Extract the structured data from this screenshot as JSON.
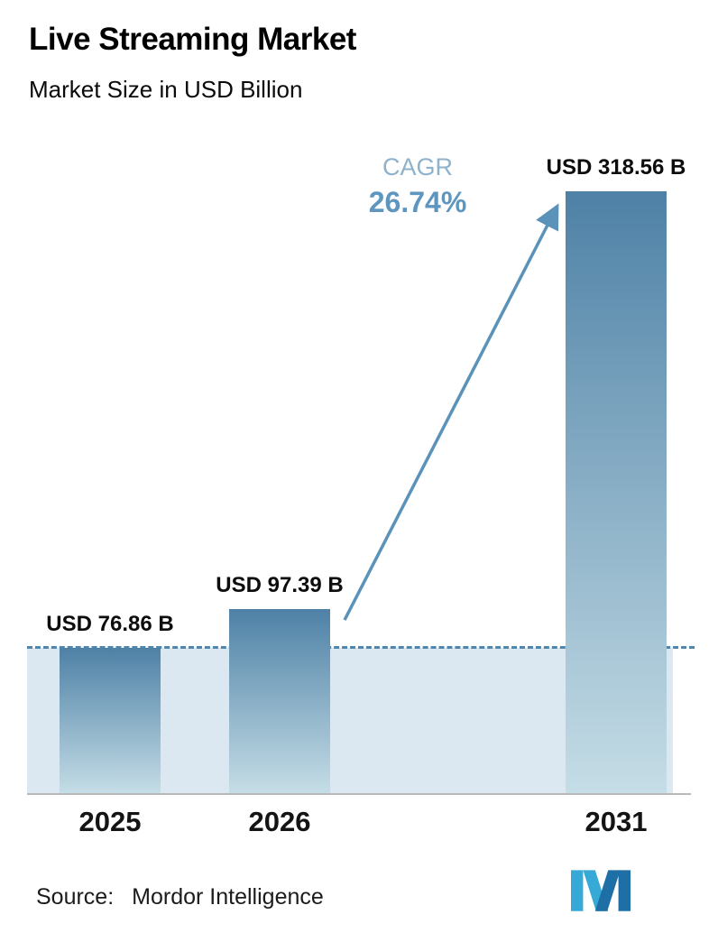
{
  "header": {
    "title": "Live Streaming Market",
    "subtitle": "Market Size in USD Billion"
  },
  "chart_data": {
    "type": "bar",
    "categories": [
      "2025",
      "2026",
      "2031"
    ],
    "values": [
      76.86,
      97.39,
      318.56
    ],
    "value_labels": [
      "USD 76.86 B",
      "USD 97.39 B",
      "USD 318.56 B"
    ],
    "unit": "USD Billion",
    "ylim": [
      0,
      318.56
    ],
    "grid": false,
    "legend": false,
    "annotations": {
      "cagr_label": "CAGR",
      "cagr_value": "26.74%",
      "reference_line_value": 76.86
    },
    "colors": {
      "bar_top": "#4e81a6",
      "bar_bottom": "#c5dde6",
      "band": "#dce8f1",
      "dashed_line": "#4d86ae",
      "arrow": "#5b92ba",
      "cagr_label": "#8fb2cc",
      "cagr_value": "#5e96bf"
    }
  },
  "footer": {
    "source_label": "Source:",
    "source_value": "Mordor Intelligence"
  }
}
